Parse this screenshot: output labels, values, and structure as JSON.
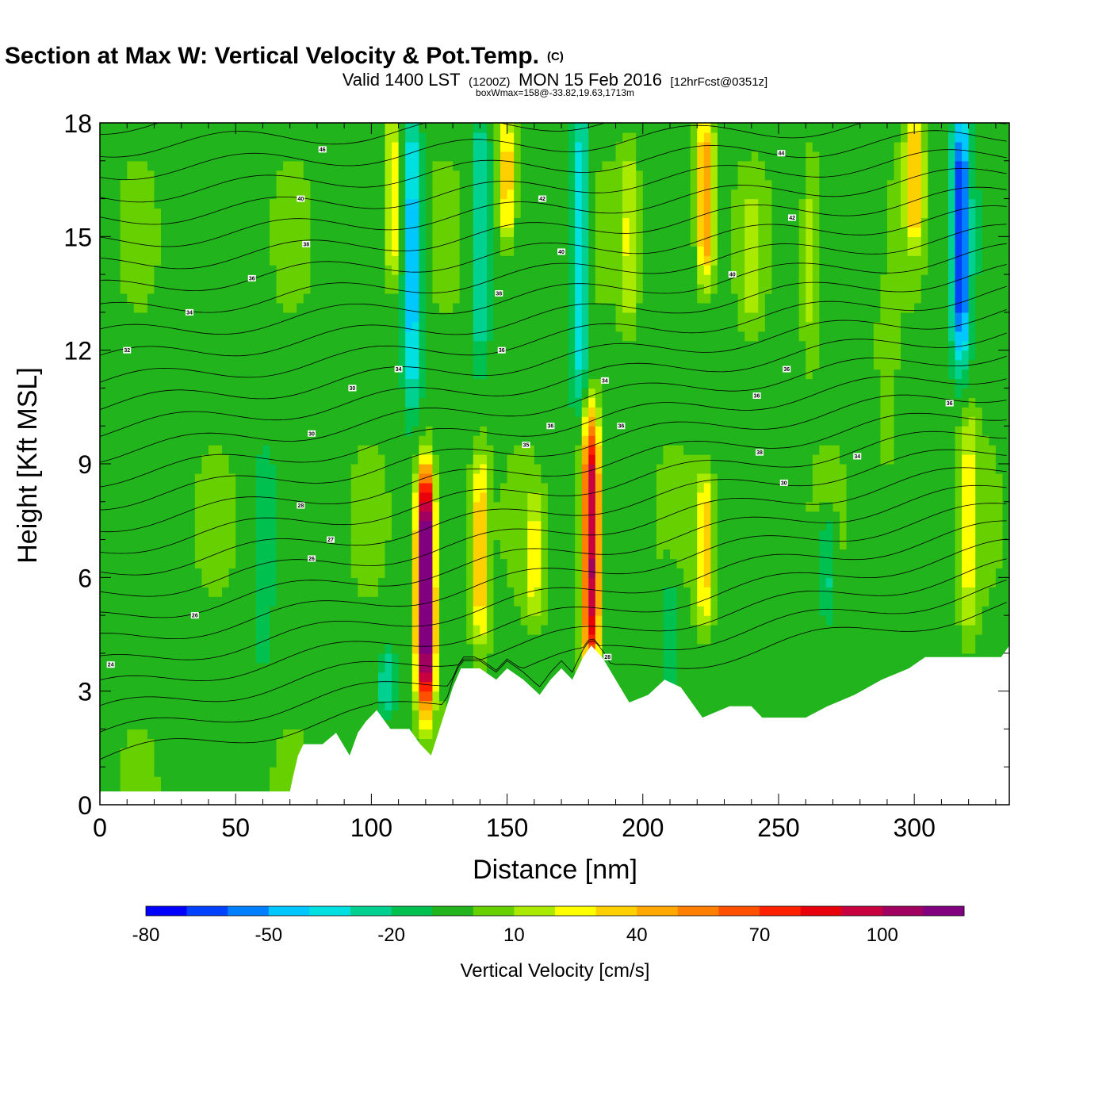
{
  "chart_data": {
    "type": "heatmap",
    "title": "Wind-Parallel Section at Max W: Vertical Velocity & Pot.Temp.",
    "title_mark": "(C)",
    "subtitle_parts": [
      "Valid 1400 LST",
      "(1200Z)",
      "MON 15 Feb 2016",
      "[12hrFcst@0351z]"
    ],
    "note": "boxWmax=158@-33.82,19.63,1713m",
    "xlabel": "Distance [nm]",
    "ylabel": "Height [Kft MSL]",
    "xlim": [
      0,
      335
    ],
    "ylim": [
      0,
      18
    ],
    "xticks": [
      0,
      50,
      100,
      150,
      200,
      250,
      300
    ],
    "yticks": [
      0,
      3,
      6,
      9,
      12,
      15,
      18
    ],
    "colorbar": {
      "label": "Vertical Velocity [cm/s]",
      "tick_values": [
        -80,
        -50,
        -20,
        10,
        40,
        70,
        100
      ],
      "tick_labels": [
        "-80",
        "-50",
        "-20",
        "10",
        "40",
        "70",
        "100"
      ],
      "levels": [
        -80,
        -70,
        -60,
        -50,
        -40,
        -30,
        -20,
        -10,
        0,
        10,
        20,
        30,
        40,
        50,
        60,
        70,
        80,
        90,
        100,
        110,
        120
      ],
      "colors": [
        "#0000ff",
        "#0040ff",
        "#0080ff",
        "#00c8ff",
        "#00e0e0",
        "#00d090",
        "#00c050",
        "#22b41c",
        "#66d000",
        "#aaea00",
        "#ffff00",
        "#ffd000",
        "#ffa800",
        "#ff8000",
        "#ff5000",
        "#ff2000",
        "#e8000a",
        "#c80040",
        "#a00060",
        "#800080"
      ]
    },
    "background_w": 0,
    "updrafts": [
      {
        "x": 120,
        "y0": 3.0,
        "y1": 8.5,
        "w": 150
      },
      {
        "x": 181,
        "y0": 4.0,
        "y1": 10.0,
        "w": 110
      },
      {
        "x": 140,
        "y0": 4.5,
        "y1": 9.0,
        "w": 45
      },
      {
        "x": 223,
        "y0": 5.0,
        "y1": 8.5,
        "w": 38
      },
      {
        "x": 223,
        "y0": 14.0,
        "y1": 18.0,
        "w": 55
      },
      {
        "x": 300,
        "y0": 15.0,
        "y1": 18.0,
        "w": 45
      },
      {
        "x": 150,
        "y0": 15.0,
        "y1": 18.0,
        "w": 45
      },
      {
        "x": 108,
        "y0": 14.0,
        "y1": 18.0,
        "w": 35
      },
      {
        "x": 160,
        "y0": 5.0,
        "y1": 8.0,
        "w": 25
      },
      {
        "x": 320,
        "y0": 5.0,
        "y1": 10.0,
        "w": 28
      },
      {
        "x": 195,
        "y0": 13.0,
        "y1": 17.0,
        "w": 25
      },
      {
        "x": 262,
        "y0": 12.0,
        "y1": 17.0,
        "w": 20
      },
      {
        "x": 240,
        "y0": 13.0,
        "y1": 16.0,
        "w": 20
      },
      {
        "x": 290,
        "y0": 9.0,
        "y1": 13.0,
        "w": 15
      }
    ],
    "downdrafts": [
      {
        "x": 317,
        "y0": 12.0,
        "y1": 18.0,
        "w": -65
      },
      {
        "x": 115,
        "y0": 11.0,
        "y1": 18.0,
        "w": -45
      },
      {
        "x": 177,
        "y0": 11.0,
        "y1": 18.0,
        "w": -40
      },
      {
        "x": 140,
        "y0": 12.0,
        "y1": 18.0,
        "w": -30
      },
      {
        "x": 106,
        "y0": 2.5,
        "y1": 4.0,
        "w": -25
      },
      {
        "x": 268,
        "y0": 5.0,
        "y1": 7.5,
        "w": -22
      },
      {
        "x": 210,
        "y0": 3.0,
        "y1": 6.0,
        "w": -15
      },
      {
        "x": 60,
        "y0": 4.0,
        "y1": 9.0,
        "w": -15
      }
    ],
    "terrain": [
      [
        0,
        0.35
      ],
      [
        70,
        0.35
      ],
      [
        71,
        0.7
      ],
      [
        73,
        1.3
      ],
      [
        75,
        1.6
      ],
      [
        82,
        1.6
      ],
      [
        87,
        1.9
      ],
      [
        92,
        1.3
      ],
      [
        95,
        1.9
      ],
      [
        98,
        2.2
      ],
      [
        102,
        2.5
      ],
      [
        107,
        2.0
      ],
      [
        114,
        2.0
      ],
      [
        118,
        1.6
      ],
      [
        122,
        1.3
      ],
      [
        126,
        2.2
      ],
      [
        130,
        3.1
      ],
      [
        133,
        3.6
      ],
      [
        140,
        3.6
      ],
      [
        146,
        3.3
      ],
      [
        150,
        3.6
      ],
      [
        156,
        3.3
      ],
      [
        162,
        2.9
      ],
      [
        166,
        3.3
      ],
      [
        170,
        3.6
      ],
      [
        174,
        3.3
      ],
      [
        178,
        3.9
      ],
      [
        181,
        4.2
      ],
      [
        185,
        3.9
      ],
      [
        190,
        3.3
      ],
      [
        195,
        2.7
      ],
      [
        202,
        2.9
      ],
      [
        208,
        3.3
      ],
      [
        214,
        3.1
      ],
      [
        218,
        2.7
      ],
      [
        222,
        2.3
      ],
      [
        232,
        2.6
      ],
      [
        240,
        2.6
      ],
      [
        244,
        2.3
      ],
      [
        260,
        2.3
      ],
      [
        268,
        2.6
      ],
      [
        278,
        2.9
      ],
      [
        288,
        3.3
      ],
      [
        298,
        3.6
      ],
      [
        304,
        3.9
      ],
      [
        332,
        3.9
      ],
      [
        335,
        4.2
      ]
    ],
    "theta_contour_labels": [
      {
        "x": 82,
        "y": 17.3,
        "t": "46"
      },
      {
        "x": 74,
        "y": 16.0,
        "t": "40"
      },
      {
        "x": 76,
        "y": 14.8,
        "t": "38"
      },
      {
        "x": 56,
        "y": 13.9,
        "t": "36"
      },
      {
        "x": 33,
        "y": 13.0,
        "t": "34"
      },
      {
        "x": 10,
        "y": 12.0,
        "t": "32"
      },
      {
        "x": 93,
        "y": 11.0,
        "t": "30"
      },
      {
        "x": 78,
        "y": 9.8,
        "t": "30"
      },
      {
        "x": 74,
        "y": 7.9,
        "t": "28"
      },
      {
        "x": 85,
        "y": 7.0,
        "t": "27"
      },
      {
        "x": 78,
        "y": 6.5,
        "t": "26"
      },
      {
        "x": 35,
        "y": 5.0,
        "t": "26"
      },
      {
        "x": 4,
        "y": 3.7,
        "t": "24"
      },
      {
        "x": 110,
        "y": 11.5,
        "t": "34"
      },
      {
        "x": 148,
        "y": 12.0,
        "t": "36"
      },
      {
        "x": 147,
        "y": 13.5,
        "t": "38"
      },
      {
        "x": 163,
        "y": 16.0,
        "t": "42"
      },
      {
        "x": 170,
        "y": 14.6,
        "t": "40"
      },
      {
        "x": 166,
        "y": 10.0,
        "t": "36"
      },
      {
        "x": 157,
        "y": 9.5,
        "t": "35"
      },
      {
        "x": 186,
        "y": 11.2,
        "t": "34"
      },
      {
        "x": 192,
        "y": 10.0,
        "t": "36"
      },
      {
        "x": 187,
        "y": 3.9,
        "t": "28"
      },
      {
        "x": 251,
        "y": 17.2,
        "t": "44"
      },
      {
        "x": 255,
        "y": 15.5,
        "t": "42"
      },
      {
        "x": 233,
        "y": 14.0,
        "t": "40"
      },
      {
        "x": 253,
        "y": 11.5,
        "t": "36"
      },
      {
        "x": 242,
        "y": 10.8,
        "t": "36"
      },
      {
        "x": 243,
        "y": 9.3,
        "t": "38"
      },
      {
        "x": 252,
        "y": 8.5,
        "t": "30"
      },
      {
        "x": 279,
        "y": 9.2,
        "t": "34"
      },
      {
        "x": 313,
        "y": 10.6,
        "t": "36"
      }
    ]
  }
}
